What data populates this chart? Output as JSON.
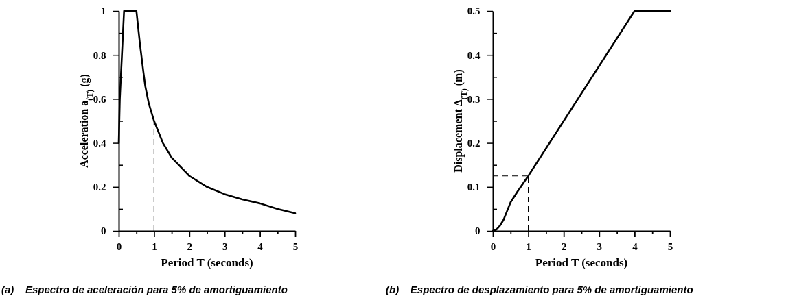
{
  "chart_data": [
    {
      "type": "line",
      "xlabel": "Period T (seconds)",
      "ylabel": "Acceleration a$_{(T)}$  (g)",
      "series": [
        {
          "color": "#000000",
          "x": [
            0,
            0.03,
            0.15,
            0.5,
            0.6,
            0.7,
            0.75,
            0.85,
            1,
            1.25,
            1.5,
            2,
            2.5,
            3,
            3.5,
            4,
            4.5,
            5
          ],
          "values": [
            0.4,
            0.6,
            1,
            1,
            0.85,
            0.72,
            0.66,
            0.58,
            0.5,
            0.4,
            0.333,
            0.25,
            0.2,
            0.167,
            0.143,
            0.125,
            0.1,
            0.08
          ]
        }
      ],
      "xlim": [
        0,
        5
      ],
      "ylim": [
        0,
        1
      ],
      "xticks": [
        0,
        {
          "value": 0.5,
          "label": null
        },
        1,
        {
          "value": 1.5,
          "label": null
        },
        2,
        {
          "value": 2.5,
          "label": null
        },
        3,
        {
          "value": 3.5,
          "label": null
        },
        4,
        {
          "value": 4.5,
          "label": null
        },
        5
      ],
      "yticks": [
        0,
        {
          "value": 0.1,
          "label": null
        },
        {
          "value": 0.2,
          "label": "0.2"
        },
        {
          "value": 0.3,
          "label": null
        },
        {
          "value": 0.4,
          "label": "0.4"
        },
        {
          "value": 0.5,
          "label": null
        },
        {
          "value": 0.6,
          "label": "0.6"
        },
        {
          "value": 0.7,
          "label": null
        },
        {
          "value": 0.8,
          "label": "0.8"
        },
        {
          "value": 0.9,
          "label": null
        },
        1
      ],
      "ref_lines": [
        {
          "axis": "y",
          "value": 0.5,
          "line_style": "dashed"
        },
        {
          "axis": "x",
          "value": 1,
          "line_style": "dashed"
        }
      ],
      "annotations": [
        "(a)    Espectro de aceleración para 5% de amortiguamiento"
      ]
    },
    {
      "type": "line",
      "xlabel": "Period  T (seconds)",
      "ylabel": "Displacement  Δ$_{(T)}$  (m)",
      "series": [
        {
          "color": "#000000",
          "x": [
            0,
            0.1,
            0.2,
            0.3,
            0.4,
            0.5,
            0.7,
            1,
            4,
            5
          ],
          "values": [
            0,
            0.003,
            0.012,
            0.025,
            0.045,
            0.065,
            0.09,
            0.125,
            0.5,
            0.5
          ]
        }
      ],
      "xlim": [
        0,
        5
      ],
      "ylim": [
        0,
        0.5
      ],
      "xticks": [
        0,
        {
          "value": 0.5,
          "label": null
        },
        1,
        {
          "value": 1.5,
          "label": null
        },
        2,
        {
          "value": 2.5,
          "label": null
        },
        3,
        {
          "value": 3.5,
          "label": null
        },
        4,
        {
          "value": 4.5,
          "label": null
        },
        5
      ],
      "yticks": [
        0,
        {
          "value": 0.05,
          "label": null
        },
        0.1,
        {
          "value": 0.15,
          "label": null
        },
        0.2,
        {
          "value": 0.25,
          "label": null
        },
        0.3,
        {
          "value": 0.35,
          "label": null
        },
        0.4,
        {
          "value": 0.45,
          "label": null
        },
        0.5
      ],
      "ref_lines": [
        {
          "axis": "y",
          "value": 0.125,
          "line_style": "dashed"
        },
        {
          "axis": "x",
          "value": 1,
          "line_style": "dashed"
        }
      ],
      "annotations": [
        "(b)    Espectro de desplazamiento para 5% de amortiguamiento"
      ]
    }
  ]
}
